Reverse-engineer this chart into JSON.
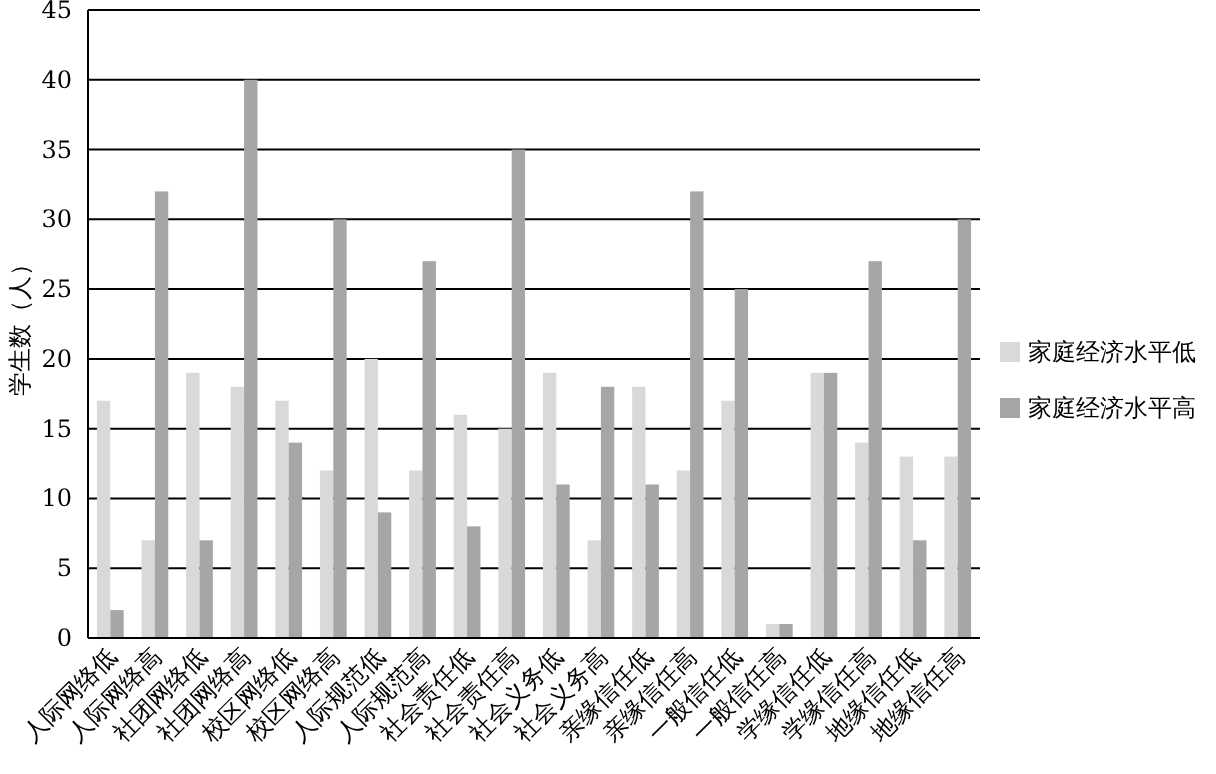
{
  "chart_data": {
    "type": "bar",
    "ylabel": "学生数（人）",
    "categories": [
      "人际网络低",
      "人际网络高",
      "社团网络低",
      "社团网络高",
      "校区网络低",
      "校区网络高",
      "人际规范低",
      "人际规范高",
      "社会责任低",
      "社会责任高",
      "社会义务低",
      "社会义务高",
      "亲缘信任低",
      "亲缘信任高",
      "一般信任低",
      "一般信任高",
      "学缘信任低",
      "学缘信任高",
      "地缘信任低",
      "地缘信任高"
    ],
    "series": [
      {
        "name": "家庭经济水平低",
        "color": "#d9d9d9",
        "values": [
          17,
          7,
          19,
          18,
          17,
          12,
          20,
          12,
          16,
          15,
          19,
          7,
          18,
          12,
          17,
          1,
          19,
          14,
          13,
          13
        ]
      },
      {
        "name": "家庭经济水平高",
        "color": "#a6a6a6",
        "values": [
          2,
          32,
          7,
          40,
          14,
          30,
          9,
          27,
          8,
          35,
          11,
          18,
          11,
          32,
          25,
          1,
          19,
          27,
          7,
          30
        ]
      }
    ],
    "ylim": [
      0,
      45
    ],
    "yticks": [
      0,
      5,
      10,
      15,
      20,
      25,
      30,
      35,
      40,
      45
    ],
    "grid": "y",
    "legend": "right"
  }
}
